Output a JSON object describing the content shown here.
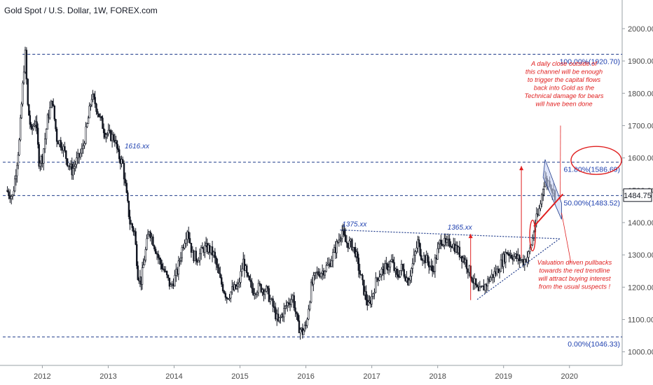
{
  "title": "Gold Spot / U.S. Dollar, 1W, FOREX.com",
  "last_price": "1484.75",
  "colors": {
    "candle": "#131722",
    "level_line": "#1e3a8a",
    "level_text": "#1e40af",
    "annotation_red": "#e02020",
    "channel_fill": "#c9d4f5",
    "axis_text": "#4a4a4a",
    "price_tag_bg": "#ffffff"
  },
  "chart_data": {
    "type": "candlestick",
    "ylim": [
      958,
      2080
    ],
    "xlim": [
      2011.4,
      2020.8
    ],
    "y_ticks": [
      "1000.00",
      "1100.00",
      "1200.00",
      "1300.00",
      "1400.00",
      "1500.00",
      "1600.00",
      "1700.00",
      "1800.00",
      "1900.00",
      "2000.00"
    ],
    "x_ticks": [
      "2012",
      "2013",
      "2014",
      "2015",
      "2016",
      "2017",
      "2018",
      "2019",
      "2020"
    ],
    "series": [
      {
        "values": [
          [
            2011.45,
            1500
          ],
          [
            2011.55,
            1480
          ],
          [
            2011.6,
            1560
          ],
          [
            2011.65,
            1650
          ],
          [
            2011.72,
            1880
          ],
          [
            2011.74,
            1920.7
          ],
          [
            2011.78,
            1760
          ],
          [
            2011.83,
            1680
          ],
          [
            2011.9,
            1720
          ],
          [
            2011.95,
            1590
          ],
          [
            2012.0,
            1600
          ],
          [
            2012.08,
            1720
          ],
          [
            2012.15,
            1780
          ],
          [
            2012.22,
            1660
          ],
          [
            2012.3,
            1640
          ],
          [
            2012.38,
            1590
          ],
          [
            2012.45,
            1560
          ],
          [
            2012.52,
            1590
          ],
          [
            2012.6,
            1620
          ],
          [
            2012.68,
            1700
          ],
          [
            2012.75,
            1790
          ],
          [
            2012.8,
            1770
          ],
          [
            2012.88,
            1720
          ],
          [
            2012.95,
            1680
          ],
          [
            2013.02,
            1670
          ],
          [
            2013.1,
            1660
          ],
          [
            2013.15,
            1610
          ],
          [
            2013.22,
            1580
          ],
          [
            2013.28,
            1480
          ],
          [
            2013.33,
            1400
          ],
          [
            2013.4,
            1370
          ],
          [
            2013.45,
            1240
          ],
          [
            2013.5,
            1220
          ],
          [
            2013.55,
            1290
          ],
          [
            2013.62,
            1380
          ],
          [
            2013.7,
            1330
          ],
          [
            2013.78,
            1280
          ],
          [
            2013.85,
            1250
          ],
          [
            2013.95,
            1200
          ],
          [
            2014.05,
            1250
          ],
          [
            2014.12,
            1320
          ],
          [
            2014.2,
            1380
          ],
          [
            2014.28,
            1300
          ],
          [
            2014.35,
            1290
          ],
          [
            2014.45,
            1320
          ],
          [
            2014.52,
            1320
          ],
          [
            2014.6,
            1300
          ],
          [
            2014.7,
            1220
          ],
          [
            2014.8,
            1170
          ],
          [
            2014.88,
            1190
          ],
          [
            2014.97,
            1200
          ],
          [
            2015.05,
            1280
          ],
          [
            2015.12,
            1220
          ],
          [
            2015.2,
            1190
          ],
          [
            2015.3,
            1200
          ],
          [
            2015.4,
            1190
          ],
          [
            2015.5,
            1140
          ],
          [
            2015.58,
            1090
          ],
          [
            2015.65,
            1120
          ],
          [
            2015.72,
            1150
          ],
          [
            2015.8,
            1170
          ],
          [
            2015.88,
            1080
          ],
          [
            2015.95,
            1060
          ],
          [
            2016.0,
            1080
          ],
          [
            2016.08,
            1200
          ],
          [
            2016.15,
            1240
          ],
          [
            2016.25,
            1250
          ],
          [
            2016.35,
            1270
          ],
          [
            2016.45,
            1320
          ],
          [
            2016.52,
            1360
          ],
          [
            2016.55,
            1375
          ],
          [
            2016.6,
            1340
          ],
          [
            2016.7,
            1330
          ],
          [
            2016.75,
            1310
          ],
          [
            2016.8,
            1260
          ],
          [
            2016.88,
            1190
          ],
          [
            2016.95,
            1140
          ],
          [
            2017.0,
            1170
          ],
          [
            2017.08,
            1230
          ],
          [
            2017.15,
            1250
          ],
          [
            2017.22,
            1260
          ],
          [
            2017.3,
            1280
          ],
          [
            2017.38,
            1230
          ],
          [
            2017.45,
            1260
          ],
          [
            2017.55,
            1220
          ],
          [
            2017.62,
            1270
          ],
          [
            2017.7,
            1340
          ],
          [
            2017.75,
            1300
          ],
          [
            2017.85,
            1280
          ],
          [
            2017.92,
            1250
          ],
          [
            2018.0,
            1310
          ],
          [
            2018.05,
            1350
          ],
          [
            2018.12,
            1330
          ],
          [
            2018.2,
            1340
          ],
          [
            2018.28,
            1320
          ],
          [
            2018.35,
            1300
          ],
          [
            2018.42,
            1280
          ],
          [
            2018.5,
            1240
          ],
          [
            2018.58,
            1200
          ],
          [
            2018.62,
            1180
          ],
          [
            2018.7,
            1200
          ],
          [
            2018.8,
            1230
          ],
          [
            2018.9,
            1250
          ],
          [
            2018.98,
            1280
          ],
          [
            2019.05,
            1310
          ],
          [
            2019.12,
            1300
          ],
          [
            2019.2,
            1290
          ],
          [
            2019.3,
            1280
          ],
          [
            2019.38,
            1300
          ],
          [
            2019.44,
            1350
          ],
          [
            2019.48,
            1400
          ],
          [
            2019.52,
            1420
          ],
          [
            2019.56,
            1460
          ],
          [
            2019.6,
            1510
          ],
          [
            2019.63,
            1540
          ],
          [
            2019.66,
            1520
          ],
          [
            2019.7,
            1530
          ],
          [
            2019.74,
            1500
          ],
          [
            2019.78,
            1485
          ]
        ]
      }
    ],
    "levels": [
      {
        "label": "100.00%(1920.70)",
        "y": 1920.7
      },
      {
        "label": "61.80%(1586.69)",
        "y": 1586.69
      },
      {
        "label": "50.00%(1483.52)",
        "y": 1483.52
      },
      {
        "label": "0.00%(1046.33)",
        "y": 1046.33
      }
    ],
    "price_notes": [
      {
        "label": "1616.xx",
        "x": 2013.25,
        "y": 1616
      },
      {
        "label": "1375.xx",
        "x": 2016.55,
        "y": 1375
      },
      {
        "label": "1365.xx",
        "x": 2018.15,
        "y": 1365
      }
    ],
    "annotations": [
      "A daily close outside of",
      "this channel will be enough",
      "to trigger the capital flows",
      "back into Gold as the",
      "Technical damage for bears",
      "will have been done"
    ],
    "annotations2": [
      "Valuation driven pullbacks",
      "towards the red trendline",
      "will attract buying interest",
      "from the usual suspects !"
    ]
  }
}
